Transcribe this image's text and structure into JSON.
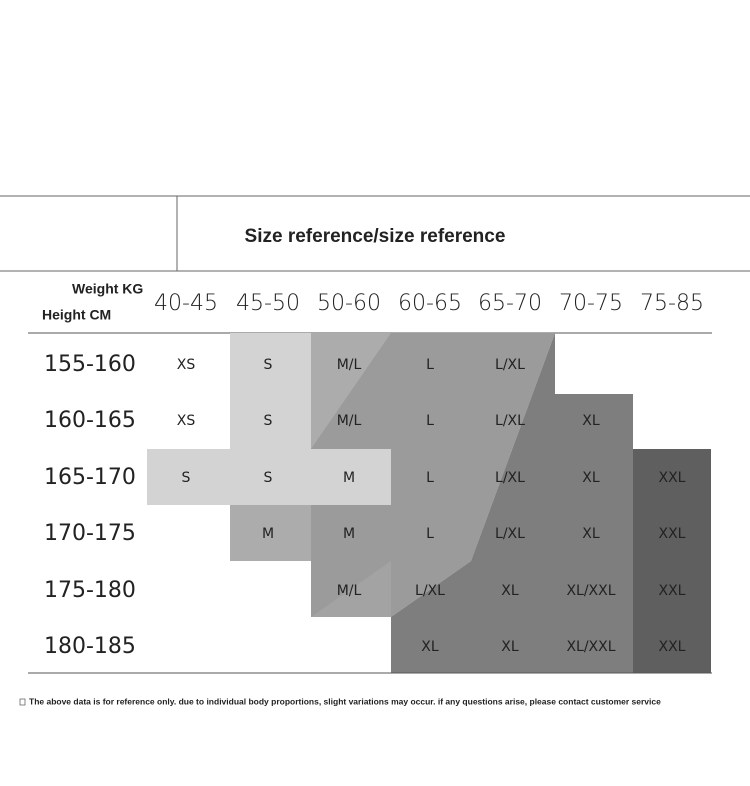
{
  "table": {
    "title": "Size reference/size reference",
    "weight_label": "Weight KG",
    "height_label": "Height CM",
    "columns": [
      "40-45",
      "45-50",
      "50-60",
      "60-65",
      "65-70",
      "70-75",
      "75-85"
    ],
    "rows": [
      {
        "label": "155-160",
        "cells": [
          "XS",
          "S",
          "M/L",
          "L",
          "L/XL",
          null,
          null
        ]
      },
      {
        "label": "160-165",
        "cells": [
          "XS",
          "S",
          "M/L",
          "L",
          "L/XL",
          "XL",
          null
        ]
      },
      {
        "label": "165-170",
        "cells": [
          "S",
          "S",
          "M",
          "L",
          "L/XL",
          "XL",
          "XXL"
        ]
      },
      {
        "label": "170-175",
        "cells": [
          null,
          "M",
          "M",
          "L",
          "L/XL",
          "XL",
          "XXL"
        ]
      },
      {
        "label": "175-180",
        "cells": [
          null,
          null,
          "M/L",
          "L/XL",
          "XL",
          "XL/XXL",
          "XXL"
        ]
      },
      {
        "label": "180-185",
        "cells": [
          null,
          null,
          null,
          "XL",
          "XL",
          "XL/XXL",
          "XXL"
        ]
      }
    ],
    "footnote": "The above data is for reference only. due to individual body proportions, slight variations may occur. if any questions arise, please contact customer service"
  }
}
